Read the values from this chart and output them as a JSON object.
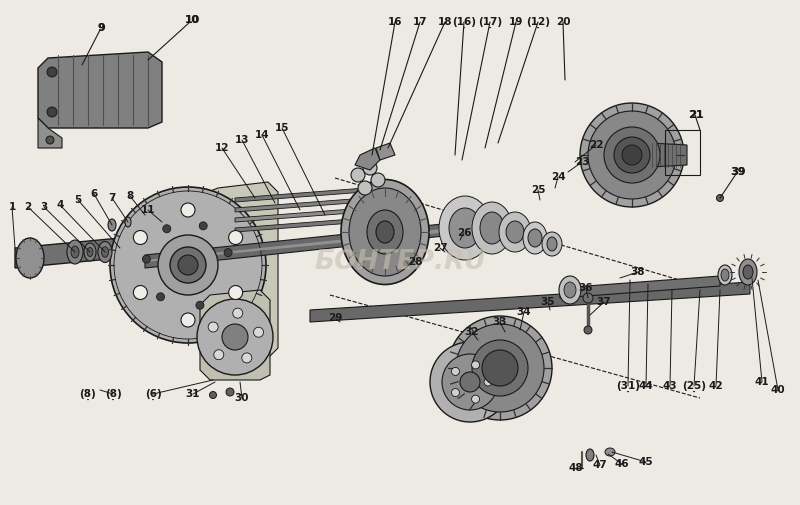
{
  "background_color": "#ede9e3",
  "watermark_text": "БОНТЕР.RU",
  "watermark_color": "#c8c0b0",
  "line_color": "#1a1a1a",
  "label_color": "#1a1a1a",
  "label_fontsize": 7.5,
  "label_underline_color": "#1a1a1a",
  "labels": [
    [
      12,
      207,
      "1"
    ],
    [
      28,
      207,
      "2"
    ],
    [
      44,
      207,
      "3"
    ],
    [
      60,
      205,
      "4"
    ],
    [
      78,
      200,
      "5"
    ],
    [
      94,
      194,
      "6"
    ],
    [
      112,
      198,
      "7"
    ],
    [
      130,
      196,
      "8"
    ],
    [
      101,
      28,
      "9"
    ],
    [
      192,
      20,
      "10"
    ],
    [
      148,
      210,
      "11"
    ],
    [
      222,
      148,
      "12"
    ],
    [
      242,
      140,
      "13"
    ],
    [
      262,
      135,
      "14"
    ],
    [
      282,
      128,
      "15"
    ],
    [
      395,
      22,
      "16"
    ],
    [
      420,
      22,
      "17"
    ],
    [
      445,
      22,
      "18"
    ],
    [
      464,
      22,
      "(16)"
    ],
    [
      490,
      22,
      "(17)"
    ],
    [
      516,
      22,
      "19"
    ],
    [
      538,
      22,
      "(12)"
    ],
    [
      563,
      22,
      "20"
    ],
    [
      696,
      115,
      "21"
    ],
    [
      596,
      145,
      "22"
    ],
    [
      582,
      162,
      "23"
    ],
    [
      558,
      177,
      "24"
    ],
    [
      538,
      190,
      "25"
    ],
    [
      464,
      233,
      "26"
    ],
    [
      440,
      248,
      "27"
    ],
    [
      415,
      262,
      "28"
    ],
    [
      335,
      318,
      "29"
    ],
    [
      242,
      398,
      "30"
    ],
    [
      193,
      394,
      "31"
    ],
    [
      153,
      394,
      "(6)"
    ],
    [
      113,
      394,
      "(8)"
    ],
    [
      88,
      394,
      "(8)"
    ],
    [
      472,
      332,
      "32"
    ],
    [
      500,
      322,
      "33"
    ],
    [
      524,
      312,
      "34"
    ],
    [
      548,
      302,
      "35"
    ],
    [
      586,
      288,
      "36"
    ],
    [
      604,
      302,
      "37"
    ],
    [
      638,
      272,
      "38"
    ],
    [
      738,
      172,
      "39"
    ],
    [
      778,
      390,
      "40"
    ],
    [
      762,
      382,
      "41"
    ],
    [
      716,
      386,
      "42"
    ],
    [
      694,
      386,
      "(25)"
    ],
    [
      670,
      386,
      "43"
    ],
    [
      646,
      386,
      "44"
    ],
    [
      628,
      386,
      "(31)"
    ],
    [
      646,
      462,
      "45"
    ],
    [
      622,
      464,
      "46"
    ],
    [
      600,
      465,
      "47"
    ],
    [
      576,
      468,
      "48"
    ]
  ],
  "underlined_labels": [
    "(8)",
    "(8)",
    "(6)",
    "(31)",
    "(16)",
    "(17)",
    "(12)",
    "(25)"
  ],
  "dashed_lines": [
    [
      335,
      178,
      720,
      292
    ],
    [
      330,
      295,
      700,
      398
    ]
  ]
}
